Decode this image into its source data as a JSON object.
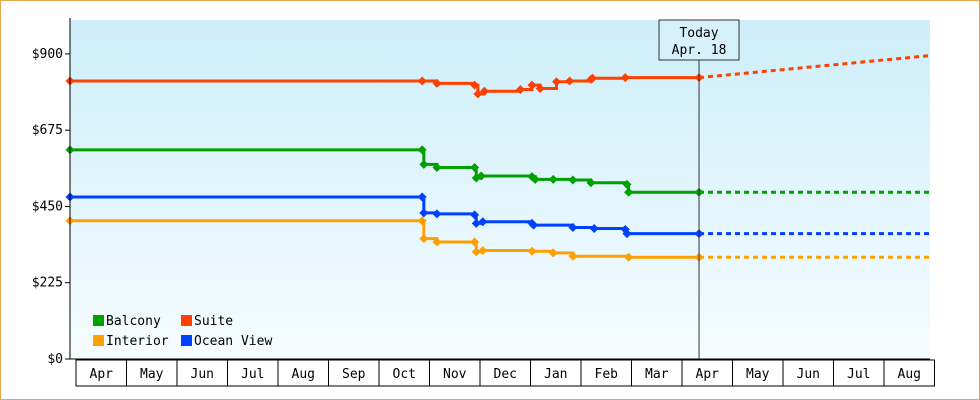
{
  "chart_data": {
    "type": "line",
    "title": "",
    "xlabel": "",
    "ylabel": "",
    "ylim": [
      0,
      1000
    ],
    "y_ticks": [
      {
        "value": 0,
        "label": "$0"
      },
      {
        "value": 225,
        "label": "$225"
      },
      {
        "value": 450,
        "label": "$450"
      },
      {
        "value": 675,
        "label": "$675"
      },
      {
        "value": 900,
        "label": "$900"
      }
    ],
    "months": [
      "Apr",
      "May",
      "Jun",
      "Jul",
      "Aug",
      "Sep",
      "Oct",
      "Nov",
      "Dec",
      "Jan",
      "Feb",
      "Mar",
      "Apr",
      "May",
      "Jun",
      "Jul",
      "Aug"
    ],
    "x_range": [
      "2015-03-31",
      "2016-09-06"
    ],
    "grid": false,
    "legend_position": "bottom-left",
    "today": {
      "date": "2016-04-18",
      "line1": "Today",
      "line2": "Apr. 18"
    },
    "series": [
      {
        "name": "Suite",
        "color": "#ff4000",
        "points": [
          [
            "2015-03-31",
            820
          ],
          [
            "2015-11-01",
            820
          ],
          [
            "2015-11-10",
            813
          ],
          [
            "2015-12-03",
            808
          ],
          [
            "2015-12-05",
            782
          ],
          [
            "2015-12-09",
            790
          ],
          [
            "2015-12-31",
            795
          ],
          [
            "2016-01-07",
            808
          ],
          [
            "2016-01-12",
            798
          ],
          [
            "2016-01-22",
            818
          ],
          [
            "2016-01-30",
            820
          ],
          [
            "2016-02-12",
            825
          ],
          [
            "2016-02-13",
            828
          ],
          [
            "2016-03-04",
            830
          ],
          [
            "2016-04-18",
            830
          ],
          [
            "2016-09-06",
            895
          ]
        ]
      },
      {
        "name": "Balcony",
        "color": "#00a000",
        "points": [
          [
            "2015-03-31",
            617
          ],
          [
            "2015-11-01",
            617
          ],
          [
            "2015-11-02",
            574
          ],
          [
            "2015-11-10",
            565
          ],
          [
            "2015-12-03",
            565
          ],
          [
            "2015-12-04",
            534
          ],
          [
            "2015-12-07",
            540
          ],
          [
            "2016-01-07",
            538
          ],
          [
            "2016-01-09",
            530
          ],
          [
            "2016-01-20",
            530
          ],
          [
            "2016-02-01",
            528
          ],
          [
            "2016-02-12",
            520
          ],
          [
            "2016-03-05",
            515
          ],
          [
            "2016-03-06",
            492
          ],
          [
            "2016-04-18",
            492
          ],
          [
            "2016-09-06",
            492
          ]
        ]
      },
      {
        "name": "Ocean View",
        "color": "#0040ff",
        "points": [
          [
            "2015-03-31",
            478
          ],
          [
            "2015-11-01",
            478
          ],
          [
            "2015-11-02",
            431
          ],
          [
            "2015-11-10",
            428
          ],
          [
            "2015-12-03",
            425
          ],
          [
            "2015-12-04",
            400
          ],
          [
            "2015-12-08",
            405
          ],
          [
            "2016-01-07",
            400
          ],
          [
            "2016-01-08",
            395
          ],
          [
            "2016-02-01",
            388
          ],
          [
            "2016-02-14",
            385
          ],
          [
            "2016-03-04",
            382
          ],
          [
            "2016-03-05",
            370
          ],
          [
            "2016-04-18",
            370
          ],
          [
            "2016-09-06",
            370
          ]
        ]
      },
      {
        "name": "Interior",
        "color": "#ffa000",
        "points": [
          [
            "2015-03-31",
            408
          ],
          [
            "2015-11-01",
            408
          ],
          [
            "2015-11-02",
            355
          ],
          [
            "2015-11-10",
            345
          ],
          [
            "2015-12-03",
            345
          ],
          [
            "2015-12-04",
            316
          ],
          [
            "2015-12-08",
            320
          ],
          [
            "2016-01-07",
            318
          ],
          [
            "2016-01-20",
            313
          ],
          [
            "2016-02-01",
            303
          ],
          [
            "2016-03-06",
            300
          ],
          [
            "2016-04-18",
            300
          ],
          [
            "2016-09-06",
            300
          ]
        ]
      }
    ],
    "legend": [
      {
        "name": "Balcony",
        "color": "#00a000"
      },
      {
        "name": "Suite",
        "color": "#ff4000"
      },
      {
        "name": "Interior",
        "color": "#ffa000"
      },
      {
        "name": "Ocean View",
        "color": "#0040ff"
      }
    ]
  }
}
